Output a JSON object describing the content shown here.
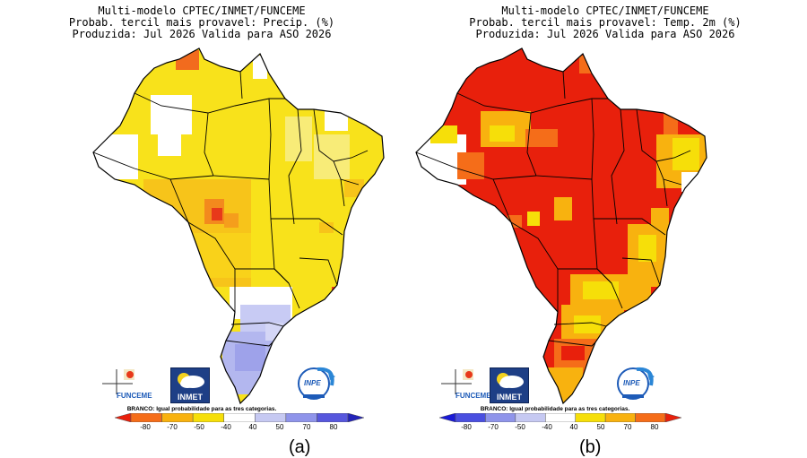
{
  "panels": [
    {
      "title": "Multi-modelo CPTEC/INMET/FUNCEME",
      "subtitle": "Probab. tercil mais provavel: Precip. (%)",
      "date_line": "Produzida: Jul 2026   Valida para ASO 2026",
      "logos": {
        "funceme": "FUNCEME",
        "inmet": "INMET",
        "inpe": "INPE"
      },
      "branco_note": "BRANCO: Igual probabilidade para as tres categorias.",
      "colorbar": {
        "ticks": [
          "-80",
          "-70",
          "-50",
          "-40",
          "40",
          "50",
          "70",
          "80"
        ],
        "colors": [
          "#e8200c",
          "#f56d19",
          "#f8b20f",
          "#f6df09",
          "#ffffff",
          "#c6c9f2",
          "#8f94ea",
          "#5757dd",
          "#2323b8"
        ]
      },
      "caption": "(a)"
    },
    {
      "title": "Multi-modelo CPTEC/INMET/FUNCEME",
      "subtitle": "Probab. tercil mais provavel: Temp. 2m (%)",
      "date_line": "Produzida: Jul 2026   Valida para ASO 2026",
      "logos": {
        "funceme": "FUNCEME",
        "inmet": "INMET",
        "inpe": "INPE"
      },
      "branco_note": "BRANCO: Igual probabilidade para as tres categorias.",
      "colorbar": {
        "ticks": [
          "-80",
          "-70",
          "-50",
          "-40",
          "40",
          "50",
          "70",
          "80"
        ],
        "colors": [
          "#1a1ad6",
          "#4a4fe0",
          "#8f94ea",
          "#c6c9f2",
          "#ffffff",
          "#f6df09",
          "#f8b20f",
          "#f56d19",
          "#e8200c"
        ]
      },
      "caption": "(b)"
    }
  ]
}
